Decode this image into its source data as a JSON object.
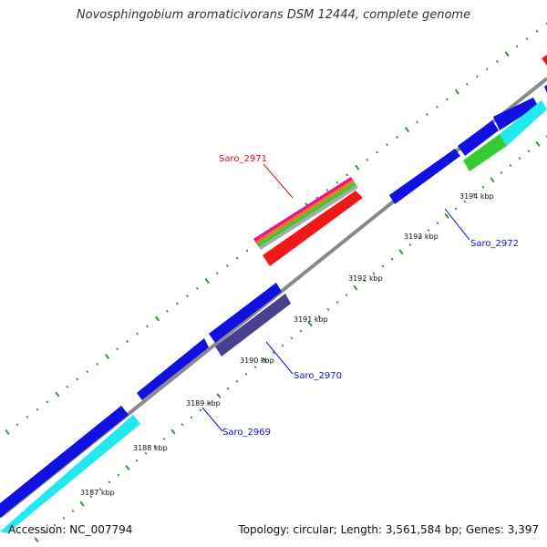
{
  "header": {
    "title": "Novosphingobium aromaticivorans DSM 12444, complete genome"
  },
  "footer": {
    "accession": "Accession: NC_007794",
    "summary": "Topology: circular; Length: 3,561,584 bp; Genes: 3,397"
  },
  "colors": {
    "backbone": "#8c8c8c",
    "tick": "#2a8a2a",
    "blue_gene": "#1010e0",
    "cyan_gene": "#22e8f0",
    "slate_gene": "#4a4090",
    "red_gene": "#f01818",
    "green_gene": "#33cc33",
    "label_red": "#dd1111",
    "label_blue": "#1111cc"
  },
  "scale": {
    "unit": "kbp",
    "labels": [
      "3187 kbp",
      "3188 kbp",
      "3189 kbp",
      "3190 kbp",
      "3191 kbp",
      "3192 kbp",
      "3193 kbp",
      "3194 kbp"
    ]
  },
  "genes": [
    {
      "name": "Saro_2969",
      "color": "label_blue"
    },
    {
      "name": "Saro_2970",
      "color": "label_blue"
    },
    {
      "name": "Saro_2971",
      "color": "label_red"
    },
    {
      "name": "Saro_2972",
      "color": "label_blue"
    }
  ]
}
